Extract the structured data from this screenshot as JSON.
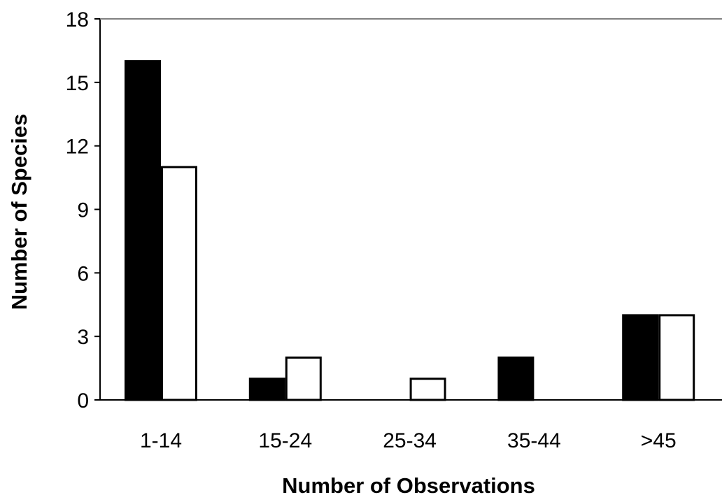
{
  "chart_data": {
    "type": "bar",
    "title": "",
    "xlabel": "Number of Observations",
    "ylabel": "Number of Species",
    "categories": [
      "1-14",
      "15-24",
      "25-34",
      "35-44",
      ">45"
    ],
    "series": [
      {
        "values": [
          16,
          1,
          0,
          2,
          4
        ],
        "fill": "#000000",
        "stroke": "#000000"
      },
      {
        "values": [
          11,
          2,
          1,
          0,
          4
        ],
        "fill": "#ffffff",
        "stroke": "#000000"
      }
    ],
    "ylim": [
      0,
      18
    ],
    "yticks": [
      0,
      3,
      6,
      9,
      12,
      15,
      18
    ],
    "grid": false,
    "legend": "none"
  }
}
